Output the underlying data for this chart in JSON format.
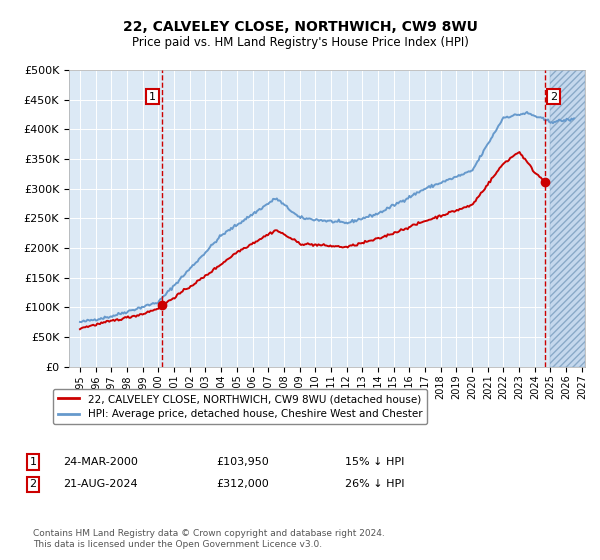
{
  "title1": "22, CALVELEY CLOSE, NORTHWICH, CW9 8WU",
  "title2": "Price paid vs. HM Land Registry's House Price Index (HPI)",
  "legend1": "22, CALVELEY CLOSE, NORTHWICH, CW9 8WU (detached house)",
  "legend2": "HPI: Average price, detached house, Cheshire West and Chester",
  "footnote": "Contains HM Land Registry data © Crown copyright and database right 2024.\nThis data is licensed under the Open Government Licence v3.0.",
  "sale1_date": "24-MAR-2000",
  "sale1_price": 103950,
  "sale1_label": "£103,950",
  "sale1_pct": "15% ↓ HPI",
  "sale2_date": "21-AUG-2024",
  "sale2_price": 312000,
  "sale2_label": "£312,000",
  "sale2_pct": "26% ↓ HPI",
  "ylim": [
    0,
    500000
  ],
  "yticks": [
    0,
    50000,
    100000,
    150000,
    200000,
    250000,
    300000,
    350000,
    400000,
    450000,
    500000
  ],
  "plot_bg": "#dce9f5",
  "red_color": "#cc0000",
  "blue_color": "#6699cc",
  "sale1_x": 2000.23,
  "sale2_x": 2024.64,
  "xlim_left": 1994.3,
  "xlim_right": 2027.2,
  "hatch_start": 2025.0
}
